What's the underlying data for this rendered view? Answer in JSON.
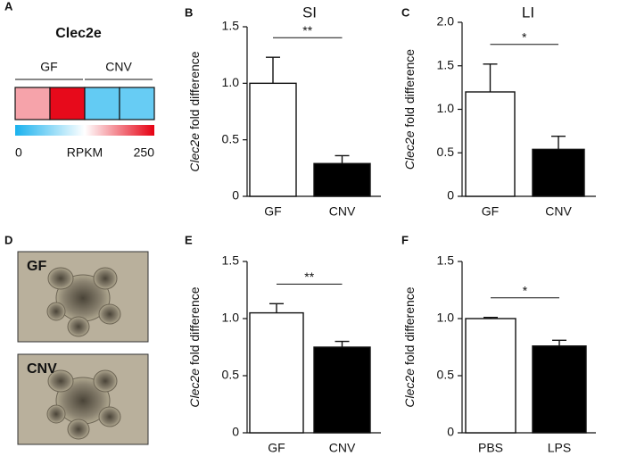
{
  "chart_data": [
    {
      "type": "heatmap",
      "panel": "A",
      "title": "Clec2e",
      "groups": [
        "GF",
        "CNV"
      ],
      "values": [
        170,
        245,
        40,
        42
      ],
      "colorbar_lim": [
        0,
        250
      ],
      "colorbar_label": "RPKM",
      "colorbar_ticks": [
        0,
        250
      ],
      "colors": [
        "#1ab2ee",
        "#ffffff",
        "#e60012"
      ]
    },
    {
      "type": "bar",
      "panel": "B",
      "title": "SI",
      "ylabel_italic": "Clec2e",
      "ylabel": "fold difference",
      "categories": [
        "GF",
        "CNV"
      ],
      "values": [
        1.0,
        0.29
      ],
      "errors": [
        0.23,
        0.07
      ],
      "colors": [
        "#ffffff",
        "#000000"
      ],
      "ylim": [
        0,
        1.5
      ],
      "yticks": [
        0,
        0.5,
        {
          "value": 1,
          "label": "1.0"
        },
        1.5
      ],
      "significance": "**"
    },
    {
      "type": "bar",
      "panel": "C",
      "title": "LI",
      "ylabel_italic": "Clec2e",
      "ylabel": "fold difference",
      "categories": [
        "GF",
        "CNV"
      ],
      "values": [
        1.2,
        0.54
      ],
      "errors": [
        0.32,
        0.15
      ],
      "colors": [
        "#ffffff",
        "#000000"
      ],
      "ylim": [
        0,
        2
      ],
      "yticks": [
        0,
        0.5,
        {
          "value": 1,
          "label": "1.0"
        },
        1.5,
        {
          "value": 2,
          "label": "2.0"
        }
      ],
      "significance": "*"
    },
    {
      "type": "images",
      "panel": "D",
      "labels": [
        "GF",
        "CNV"
      ]
    },
    {
      "type": "bar",
      "panel": "E",
      "ylabel_italic": "Clec2e",
      "ylabel": "fold difference",
      "categories": [
        "GF",
        "CNV"
      ],
      "values": [
        1.05,
        0.75
      ],
      "errors": [
        0.08,
        0.05
      ],
      "colors": [
        "#ffffff",
        "#000000"
      ],
      "ylim": [
        0,
        1.5
      ],
      "yticks": [
        0,
        0.5,
        {
          "value": 1,
          "label": "1.0"
        },
        1.5
      ],
      "significance": "**"
    },
    {
      "type": "bar",
      "panel": "F",
      "ylabel_italic": "Clec2e",
      "ylabel": "fold difference",
      "categories": [
        "PBS",
        "LPS"
      ],
      "values": [
        1.0,
        0.76
      ],
      "errors": [
        0.01,
        0.05
      ],
      "colors": [
        "#ffffff",
        "#000000"
      ],
      "ylim": [
        0,
        1.5
      ],
      "yticks": [
        0,
        0.5,
        {
          "value": 1,
          "label": "1.0"
        },
        1.5
      ],
      "significance": "*"
    }
  ]
}
